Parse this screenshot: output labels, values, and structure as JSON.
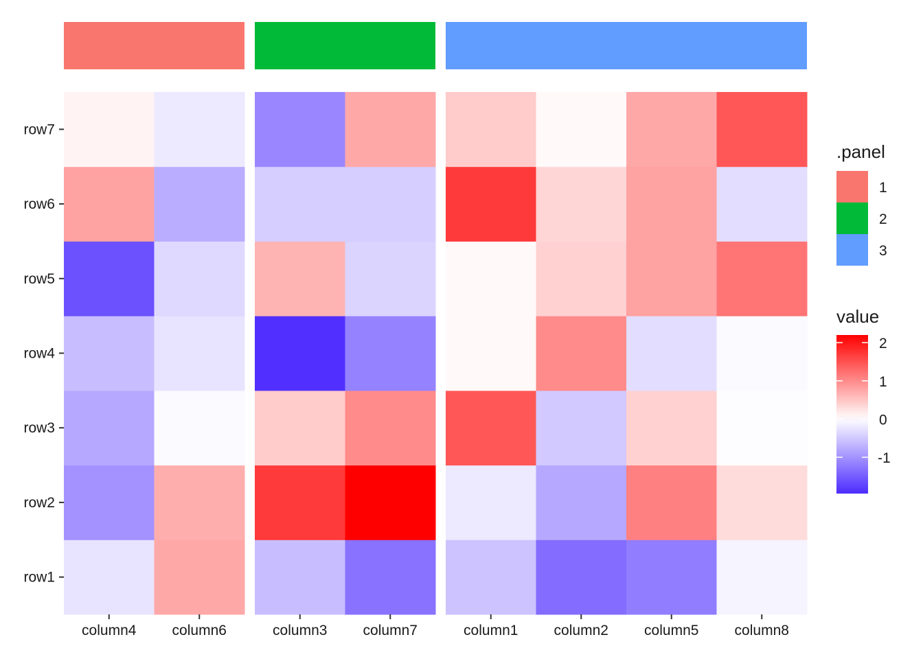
{
  "chart_data": {
    "type": "heatmap",
    "rows": [
      "row1",
      "row2",
      "row3",
      "row4",
      "row5",
      "row6",
      "row7"
    ],
    "panels": [
      {
        "id": "1",
        "color": "#F8766D",
        "columns": [
          "column4",
          "column6"
        ]
      },
      {
        "id": "2",
        "color": "#00BA38",
        "columns": [
          "column3",
          "column7"
        ]
      },
      {
        "id": "3",
        "color": "#619CFF",
        "columns": [
          "column1",
          "column2",
          "column5",
          "column8"
        ]
      }
    ],
    "values": {
      "column4": [
        -0.25,
        -1.0,
        -0.8,
        -0.6,
        -1.6,
        0.8,
        0.1
      ],
      "column6": [
        0.75,
        0.7,
        -0.05,
        -0.25,
        -0.35,
        -0.75,
        -0.2
      ],
      "column3": [
        -0.6,
        1.7,
        0.45,
        -1.9,
        0.65,
        -0.45,
        -1.1
      ],
      "column7": [
        -1.3,
        2.2,
        1.0,
        -1.15,
        -0.4,
        -0.45,
        0.75
      ],
      "column1": [
        -0.55,
        -0.2,
        1.45,
        0.05,
        0.05,
        1.7,
        0.45
      ],
      "column2": [
        -1.35,
        -0.8,
        -0.5,
        1.0,
        0.4,
        0.35,
        0.05
      ],
      "column5": [
        -1.2,
        1.1,
        0.4,
        -0.3,
        0.8,
        0.8,
        0.75
      ],
      "column8": [
        -0.1,
        0.3,
        -0.02,
        -0.05,
        1.2,
        -0.3,
        1.45
      ]
    },
    "legend_panel": {
      "title": ".panel",
      "entries": [
        "1",
        "2",
        "3"
      ]
    },
    "legend_value": {
      "title": "value",
      "ticks": [
        "2",
        "1",
        "0",
        "-1"
      ],
      "tick_values": [
        2,
        1,
        0,
        -1
      ],
      "range": [
        -1.95,
        2.2
      ],
      "low_color": "#4C2BFF",
      "mid_color": "#FFFFFF",
      "high_color": "#FF0000"
    }
  }
}
